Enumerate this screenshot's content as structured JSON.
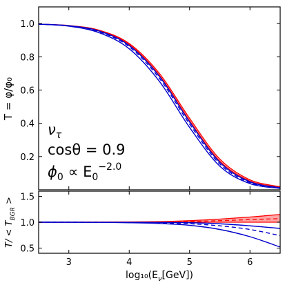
{
  "chart_data": [
    {
      "panel": "top",
      "type": "line",
      "ylabel": "T = φ/φ₀",
      "xlim": [
        2.5,
        6.5
      ],
      "ylim": [
        0.0,
        1.1
      ],
      "yticks": [
        0.2,
        0.4,
        0.6,
        0.8,
        1.0
      ],
      "yticklabels": [
        "0.2",
        "0.4",
        "0.6",
        "0.8",
        "1.0"
      ],
      "annotations": {
        "neutrino": "ν",
        "neutrino_sub": "τ",
        "angle": "cosθ = 0.9",
        "flux_lhs": "ϕ",
        "flux_lhs_sub": "0",
        "flux_mid": " ∝ E",
        "flux_mid_sub": "0",
        "flux_exp": "−2.0"
      },
      "x": [
        2.5,
        3.0,
        3.5,
        4.0,
        4.5,
        5.0,
        5.5,
        6.0,
        6.5
      ],
      "series": [
        {
          "style": "red band upper",
          "color": "#ff0000",
          "values": [
            0.996,
            0.988,
            0.96,
            0.88,
            0.7,
            0.43,
            0.185,
            0.06,
            0.018
          ]
        },
        {
          "style": "red band lower",
          "color": "#ff0000",
          "values": [
            0.996,
            0.987,
            0.957,
            0.873,
            0.688,
            0.415,
            0.172,
            0.052,
            0.013
          ]
        },
        {
          "style": "blue solid upper",
          "color": "#0000cc",
          "values": [
            0.996,
            0.987,
            0.955,
            0.868,
            0.682,
            0.408,
            0.165,
            0.048,
            0.012
          ]
        },
        {
          "style": "blue dashed",
          "color": "#0000cc",
          "values": [
            0.996,
            0.986,
            0.951,
            0.86,
            0.67,
            0.395,
            0.155,
            0.043,
            0.01
          ]
        },
        {
          "style": "blue solid lower",
          "color": "#0000cc",
          "values": [
            0.996,
            0.984,
            0.945,
            0.848,
            0.652,
            0.375,
            0.142,
            0.037,
            0.008
          ]
        }
      ]
    },
    {
      "panel": "bottom",
      "type": "line",
      "xlabel": "log₁₀(E",
      "xlabel_sub": "ν",
      "xlabel_end": "[GeV])",
      "ylabel": "T/ < T",
      "ylabel_sub": "BGR",
      "ylabel_end": " >",
      "xlim": [
        2.5,
        6.5
      ],
      "ylim": [
        0.4,
        1.6
      ],
      "xticks": [
        3,
        4,
        5,
        6
      ],
      "xticklabels": [
        "3",
        "4",
        "5",
        "6"
      ],
      "yticks": [
        0.5,
        1.0,
        1.5
      ],
      "yticklabels": [
        "0.5",
        "1.0",
        "1.5"
      ],
      "x": [
        2.5,
        3.0,
        3.5,
        4.0,
        4.5,
        5.0,
        5.5,
        6.0,
        6.5
      ],
      "series": [
        {
          "style": "red band upper",
          "color": "#ff0000",
          "values": [
            1.0,
            1.0,
            1.002,
            1.005,
            1.012,
            1.03,
            1.06,
            1.1,
            1.15
          ]
        },
        {
          "style": "red band lower",
          "color": "#ff0000",
          "values": [
            1.0,
            1.0,
            1.0,
            1.0,
            1.0,
            1.0,
            1.0,
            1.0,
            1.0
          ]
        },
        {
          "style": "red dashed",
          "color": "#ff0000",
          "values": [
            1.0,
            1.0,
            1.001,
            1.003,
            1.007,
            1.015,
            1.03,
            1.05,
            1.07
          ]
        },
        {
          "style": "blue solid upper",
          "color": "#0000cc",
          "values": [
            1.0,
            1.0,
            0.999,
            0.998,
            0.996,
            0.99,
            0.97,
            0.93,
            0.88
          ]
        },
        {
          "style": "blue dashed",
          "color": "#0000cc",
          "values": [
            1.0,
            1.0,
            0.998,
            0.995,
            0.988,
            0.97,
            0.93,
            0.86,
            0.74
          ]
        },
        {
          "style": "blue solid lower",
          "color": "#0000cc",
          "values": [
            1.0,
            0.999,
            0.997,
            0.99,
            0.975,
            0.94,
            0.86,
            0.72,
            0.52
          ]
        }
      ]
    }
  ]
}
